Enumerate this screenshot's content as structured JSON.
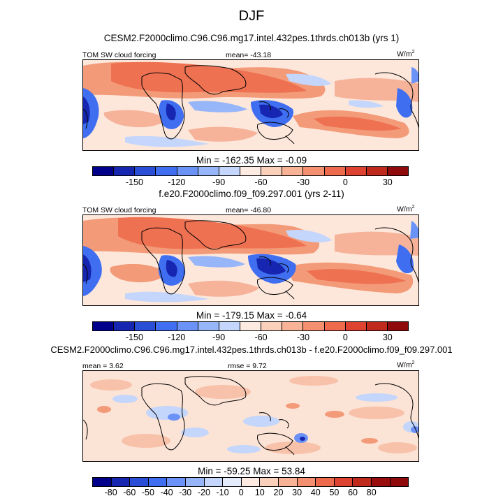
{
  "title": "DJF",
  "panels": [
    {
      "case_title": "CESM2.F2000climo.C96.C96.mg17.intel.432pes.1thrds.ch013b (yrs 1)",
      "left_label": "TOM SW cloud forcing",
      "center_label": "mean= -43.18",
      "right_label": "W/m",
      "right_label_exp": "2",
      "minmax": "Min = -162.35 Max =  -0.09",
      "colors": [
        "#00008b",
        "#1726b0",
        "#2a4fd6",
        "#3f6ef0",
        "#6b93f7",
        "#97b6f9",
        "#c4d6fb",
        "#fdeae0",
        "#fbd0bb",
        "#f8b296",
        "#f48f6f",
        "#ee6a4c",
        "#dd4330",
        "#bf2a1c",
        "#8f0a0a"
      ],
      "ticks": [
        "-150",
        "-120",
        "-90",
        "-60",
        "-30",
        "0",
        "30"
      ]
    },
    {
      "case_title": "f.e20.F2000climo.f09_f09.297.001 (yrs 2-11)",
      "left_label": "TOM SW cloud forcing",
      "center_label": "mean= -46.80",
      "right_label": "W/m",
      "right_label_exp": "2",
      "minmax": "Min = -179.15 Max =  -0.64",
      "colors": [
        "#00008b",
        "#1726b0",
        "#2a4fd6",
        "#3f6ef0",
        "#6b93f7",
        "#97b6f9",
        "#c4d6fb",
        "#fdeae0",
        "#fbd0bb",
        "#f8b296",
        "#f48f6f",
        "#ee6a4c",
        "#dd4330",
        "#bf2a1c",
        "#8f0a0a"
      ],
      "ticks": [
        "-150",
        "-120",
        "-90",
        "-60",
        "-30",
        "0",
        "30"
      ]
    },
    {
      "case_title": "CESM2.F2000climo.C96.C96.mg17.intel.432pes.1thrds.ch013b - f.e20.F2000climo.f09_f09.297.001",
      "left_label": "mean =   3.62",
      "center_label": "rmse =   9.72",
      "right_label": "W/m",
      "right_label_exp": "2",
      "minmax": "Min = -59.25 Max =  53.84",
      "colors": [
        "#00008b",
        "#1726b0",
        "#2a4fd6",
        "#3f6ef0",
        "#6b93f7",
        "#97b6f9",
        "#c4d6fb",
        "#e4ecfb",
        "#fdeae0",
        "#fbd0bb",
        "#f8b296",
        "#f48f6f",
        "#ee6a4c",
        "#dd4330",
        "#bf2a1c",
        "#990d0d",
        "#8f0a0a"
      ],
      "ticks": [
        "-80",
        "-60",
        "-50",
        "-40",
        "-30",
        "-20",
        "-10",
        "0",
        "10",
        "20",
        "30",
        "40",
        "50",
        "60",
        "80"
      ]
    }
  ]
}
